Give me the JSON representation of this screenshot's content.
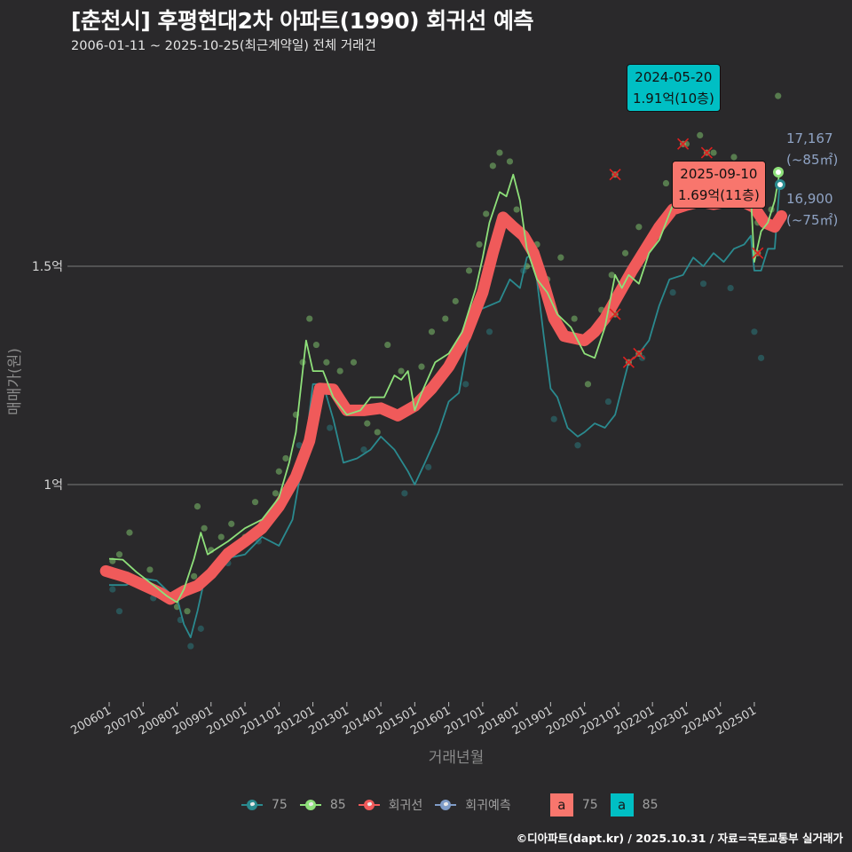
{
  "header": {
    "title": "[춘천시] 후평현대2차 아파트(1990) 회귀선 예측",
    "subtitle": "2006-01-11 ~ 2025-10-25(최근계약일) 전체 거래건"
  },
  "axes": {
    "y_title": "매매가(원)",
    "x_title": "거래년월",
    "y_ticks": [
      {
        "label": "1.5억",
        "value": 15000
      },
      {
        "label": "1억",
        "value": 10000
      }
    ],
    "x_ticks": [
      "200601",
      "200701",
      "200801",
      "200901",
      "201001",
      "201101",
      "201201",
      "201301",
      "201401",
      "201501",
      "201601",
      "201701",
      "201801",
      "201901",
      "202001",
      "202101",
      "202201",
      "202301",
      "202401",
      "202501"
    ]
  },
  "callouts": {
    "max": {
      "date": "2024-05-20",
      "price": "1.91억(10층)",
      "color": "#00bfc4"
    },
    "latest": {
      "date": "2025-09-10",
      "price": "1.69억(11층)",
      "color": "#f8766d"
    }
  },
  "side_labels": {
    "p85": {
      "value": "17,167",
      "area": "(~85㎡)"
    },
    "p75": {
      "value": "16,900",
      "area": "(~75㎡)"
    }
  },
  "legend": {
    "items": [
      {
        "label": "75",
        "color": "#2a8a8f"
      },
      {
        "label": "85",
        "color": "#8ee07a"
      },
      {
        "label": "회귀선",
        "color": "#f05a5a"
      },
      {
        "label": "회귀예측",
        "color": "#7f9cc8"
      }
    ],
    "boxes": [
      {
        "glyph": "a",
        "label": "75",
        "color": "#f8766d"
      },
      {
        "glyph": "a",
        "label": "85",
        "color": "#00bfc4"
      }
    ]
  },
  "footer": "©디아파트(dapt.kr) / 2025.10.31 / 자료=국토교통부 실거래가",
  "colors": {
    "background": "#2a292b",
    "line75": "#2a8a8f",
    "line85": "#8ee07a",
    "regression": "#f05a5a",
    "gridline": "#6b6b6b"
  },
  "chart_data": {
    "type": "line",
    "title": "[춘천시] 후평현대2차 아파트(1990) 회귀선 예측",
    "subtitle": "2006-01-11 ~ 2025-10-25(최근계약일) 전체 거래건",
    "xlabel": "거래년월",
    "ylabel": "매매가(원)",
    "y_unit": "만원",
    "ylim": [
      6000,
      19500
    ],
    "xlim": [
      2005.9,
      2026.0
    ],
    "grid": "horizontal",
    "legend_position": "bottom",
    "series": [
      {
        "name": "회귀선",
        "x": [
          2005.9,
          2006.5,
          2007.0,
          2007.5,
          2007.8,
          2008.2,
          2008.6,
          2009.0,
          2009.5,
          2010.0,
          2010.5,
          2011.0,
          2011.5,
          2011.9,
          2012.2,
          2012.6,
          2013.0,
          2013.5,
          2014.0,
          2014.5,
          2015.0,
          2015.5,
          2016.0,
          2016.5,
          2017.0,
          2017.3,
          2017.6,
          2017.9,
          2018.2,
          2018.5,
          2018.8,
          2019.1,
          2019.4,
          2019.7,
          2020.0,
          2020.3,
          2020.6,
          2021.0,
          2021.4,
          2021.8,
          2022.2,
          2022.6,
          2023.0,
          2023.4,
          2023.8,
          2024.2,
          2024.6,
          2025.0,
          2025.3,
          2025.6,
          2025.8
        ],
        "values": [
          8020,
          7880,
          7700,
          7520,
          7380,
          7560,
          7680,
          7960,
          8420,
          8700,
          9000,
          9500,
          10180,
          11000,
          12200,
          12180,
          11700,
          11700,
          11750,
          11580,
          11800,
          12200,
          12700,
          13400,
          14400,
          15300,
          16120,
          15900,
          15700,
          15300,
          14600,
          13800,
          13400,
          13350,
          13300,
          13500,
          13800,
          14350,
          14900,
          15400,
          15900,
          16300,
          16400,
          16480,
          16420,
          16480,
          16500,
          16350,
          16000,
          15900,
          16150
        ]
      },
      {
        "name": "85",
        "x": [
          2006.0,
          2006.4,
          2006.8,
          2007.3,
          2007.7,
          2008.0,
          2008.2,
          2008.5,
          2008.7,
          2008.9,
          2009.1,
          2009.5,
          2010.0,
          2010.5,
          2011.0,
          2011.3,
          2011.5,
          2011.8,
          2012.0,
          2012.3,
          2012.6,
          2013.0,
          2013.4,
          2013.7,
          2014.1,
          2014.4,
          2014.6,
          2014.8,
          2015.0,
          2015.2,
          2015.6,
          2016.0,
          2016.4,
          2016.8,
          2017.0,
          2017.2,
          2017.5,
          2017.7,
          2017.9,
          2018.1,
          2018.3,
          2018.6,
          2018.9,
          2019.2,
          2019.6,
          2020.0,
          2020.3,
          2020.6,
          2020.9,
          2021.1,
          2021.3,
          2021.6,
          2021.9,
          2022.2,
          2022.6,
          2023.0,
          2023.4,
          2023.7,
          2024.0,
          2024.3,
          2024.6,
          2024.9,
          2025.0,
          2025.2,
          2025.4,
          2025.6,
          2025.75
        ],
        "values": [
          8300,
          8280,
          8000,
          7700,
          7450,
          7300,
          7600,
          8300,
          8900,
          8400,
          8500,
          8700,
          9000,
          9200,
          9700,
          10500,
          11200,
          13300,
          12600,
          12600,
          12000,
          11600,
          11700,
          12000,
          12000,
          12500,
          12400,
          12600,
          11700,
          12100,
          12800,
          13000,
          13500,
          14500,
          15200,
          16000,
          16700,
          16600,
          17100,
          16500,
          15400,
          14700,
          14400,
          13900,
          13600,
          13000,
          12900,
          13600,
          14800,
          14500,
          14800,
          14600,
          15300,
          15600,
          16400,
          16500,
          16400,
          16700,
          16900,
          16650,
          16500,
          16600,
          15100,
          15800,
          16000,
          16500,
          17167
        ]
      },
      {
        "name": "75",
        "x": [
          2006.0,
          2006.5,
          2007.0,
          2007.4,
          2007.8,
          2008.0,
          2008.2,
          2008.4,
          2008.6,
          2008.8,
          2009.0,
          2009.4,
          2010.0,
          2010.5,
          2011.0,
          2011.4,
          2011.8,
          2012.0,
          2012.3,
          2012.6,
          2012.9,
          2013.3,
          2013.7,
          2014.0,
          2014.4,
          2014.8,
          2015.0,
          2015.3,
          2015.7,
          2016.0,
          2016.3,
          2016.6,
          2016.9,
          2017.2,
          2017.5,
          2017.8,
          2018.1,
          2018.3,
          2018.5,
          2018.8,
          2019.0,
          2019.2,
          2019.5,
          2019.8,
          2020.0,
          2020.3,
          2020.6,
          2020.9,
          2021.1,
          2021.3,
          2021.6,
          2021.9,
          2022.2,
          2022.5,
          2022.9,
          2023.2,
          2023.5,
          2023.8,
          2024.1,
          2024.4,
          2024.7,
          2024.9,
          2025.0,
          2025.2,
          2025.4,
          2025.6,
          2025.75
        ],
        "values": [
          7700,
          7700,
          7850,
          7800,
          7500,
          7400,
          6800,
          6500,
          7100,
          7800,
          8000,
          8300,
          8400,
          8800,
          8600,
          9200,
          11000,
          12300,
          12300,
          11500,
          10500,
          10600,
          10800,
          11100,
          10800,
          10300,
          10000,
          10500,
          11200,
          11900,
          12100,
          13400,
          14000,
          14100,
          14200,
          14700,
          14500,
          15200,
          15300,
          13400,
          12200,
          12000,
          11300,
          11100,
          11200,
          11400,
          11300,
          11600,
          12200,
          12800,
          13000,
          13300,
          14100,
          14700,
          14800,
          15200,
          15000,
          15300,
          15100,
          15400,
          15500,
          15700,
          14900,
          14900,
          15400,
          15400,
          16900
        ]
      }
    ],
    "annotations": [
      {
        "text": "2024-05-20 1.91억(10층)",
        "x": 2024.4,
        "y": 19100,
        "kind": "max"
      },
      {
        "text": "2025-09-10 1.69억(11층)",
        "x": 2025.7,
        "y": 16900,
        "kind": "latest"
      },
      {
        "text": "17,167 (~85㎡)",
        "x": 2025.8,
        "y": 17167
      },
      {
        "text": "16,900 (~75㎡)",
        "x": 2025.8,
        "y": 16900
      }
    ],
    "scatter_85": [
      [
        2006.1,
        8250
      ],
      [
        2006.3,
        8400
      ],
      [
        2006.6,
        8900
      ],
      [
        2007.2,
        8050
      ],
      [
        2007.6,
        7500
      ],
      [
        2008.0,
        7200
      ],
      [
        2008.3,
        7100
      ],
      [
        2008.5,
        7900
      ],
      [
        2008.6,
        9500
      ],
      [
        2008.8,
        9000
      ],
      [
        2009.0,
        8500
      ],
      [
        2009.3,
        8800
      ],
      [
        2009.6,
        9100
      ],
      [
        2010.0,
        8800
      ],
      [
        2010.3,
        9600
      ],
      [
        2010.6,
        9100
      ],
      [
        2010.9,
        9800
      ],
      [
        2011.0,
        10300
      ],
      [
        2011.2,
        10600
      ],
      [
        2011.5,
        11600
      ],
      [
        2011.7,
        12800
      ],
      [
        2011.9,
        13800
      ],
      [
        2012.1,
        13200
      ],
      [
        2012.4,
        12800
      ],
      [
        2012.8,
        12600
      ],
      [
        2013.2,
        12800
      ],
      [
        2013.6,
        11400
      ],
      [
        2013.9,
        11200
      ],
      [
        2014.2,
        13200
      ],
      [
        2014.6,
        12600
      ],
      [
        2014.9,
        11800
      ],
      [
        2015.2,
        12700
      ],
      [
        2015.5,
        13500
      ],
      [
        2015.9,
        13800
      ],
      [
        2016.2,
        14200
      ],
      [
        2016.6,
        14900
      ],
      [
        2016.9,
        15500
      ],
      [
        2017.1,
        16200
      ],
      [
        2017.3,
        17300
      ],
      [
        2017.5,
        17600
      ],
      [
        2017.8,
        17400
      ],
      [
        2018.0,
        16300
      ],
      [
        2018.3,
        15000
      ],
      [
        2018.6,
        15500
      ],
      [
        2018.9,
        14700
      ],
      [
        2019.3,
        15200
      ],
      [
        2019.7,
        13800
      ],
      [
        2020.1,
        12300
      ],
      [
        2020.5,
        14000
      ],
      [
        2020.8,
        14800
      ],
      [
        2021.2,
        15300
      ],
      [
        2021.6,
        15900
      ],
      [
        2022.0,
        15700
      ],
      [
        2022.4,
        16900
      ],
      [
        2022.7,
        16800
      ],
      [
        2023.0,
        17800
      ],
      [
        2023.4,
        18000
      ],
      [
        2023.8,
        17600
      ],
      [
        2024.1,
        17200
      ],
      [
        2024.4,
        17500
      ],
      [
        2024.8,
        16800
      ],
      [
        2025.1,
        16000
      ],
      [
        2025.5,
        16300
      ],
      [
        2025.7,
        18900
      ]
    ],
    "scatter_75": [
      [
        2006.1,
        7600
      ],
      [
        2006.3,
        7100
      ],
      [
        2007.3,
        7400
      ],
      [
        2008.1,
        6900
      ],
      [
        2008.4,
        6300
      ],
      [
        2008.7,
        6700
      ],
      [
        2009.5,
        8200
      ],
      [
        2010.4,
        8700
      ],
      [
        2011.6,
        10900
      ],
      [
        2012.5,
        11300
      ],
      [
        2013.5,
        10800
      ],
      [
        2014.7,
        9800
      ],
      [
        2015.4,
        10400
      ],
      [
        2016.5,
        12300
      ],
      [
        2017.2,
        13500
      ],
      [
        2018.2,
        14900
      ],
      [
        2019.1,
        11500
      ],
      [
        2019.8,
        10900
      ],
      [
        2020.7,
        11900
      ],
      [
        2021.7,
        12900
      ],
      [
        2022.6,
        14400
      ],
      [
        2023.5,
        14600
      ],
      [
        2024.3,
        14500
      ],
      [
        2025.0,
        13500
      ],
      [
        2025.2,
        12900
      ]
    ],
    "outliers_x": [
      [
        2020.9,
        17100
      ],
      [
        2021.3,
        12800
      ],
      [
        2021.6,
        13000
      ],
      [
        2022.9,
        17800
      ],
      [
        2023.6,
        17600
      ],
      [
        2025.1,
        15300
      ],
      [
        2020.9,
        13900
      ]
    ]
  }
}
